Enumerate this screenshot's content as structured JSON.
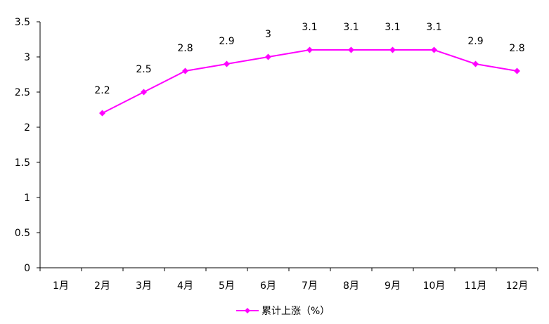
{
  "chart_data": {
    "type": "line",
    "title": "",
    "xlabel": "",
    "ylabel": "",
    "categories": [
      "1月",
      "2月",
      "3月",
      "4月",
      "5月",
      "6月",
      "7月",
      "8月",
      "9月",
      "10月",
      "11月",
      "12月"
    ],
    "series": [
      {
        "name": "累计上涨（%）",
        "values": [
          null,
          2.2,
          2.5,
          2.8,
          2.9,
          3.0,
          3.1,
          3.1,
          3.1,
          3.1,
          2.9,
          2.8
        ],
        "data_labels": [
          "",
          "2.2",
          "2.5",
          "2.8",
          "2.9",
          "3",
          "3.1",
          "3.1",
          "3.1",
          "3.1",
          "2.9",
          "2.8"
        ],
        "color": "#ff00ff",
        "marker": "diamond"
      }
    ],
    "ylim": [
      0,
      3.5
    ],
    "yticks": [
      "0",
      "0.5",
      "1",
      "1.5",
      "2",
      "2.5",
      "3",
      "3.5"
    ],
    "grid": false,
    "legend": "bottom-center"
  }
}
